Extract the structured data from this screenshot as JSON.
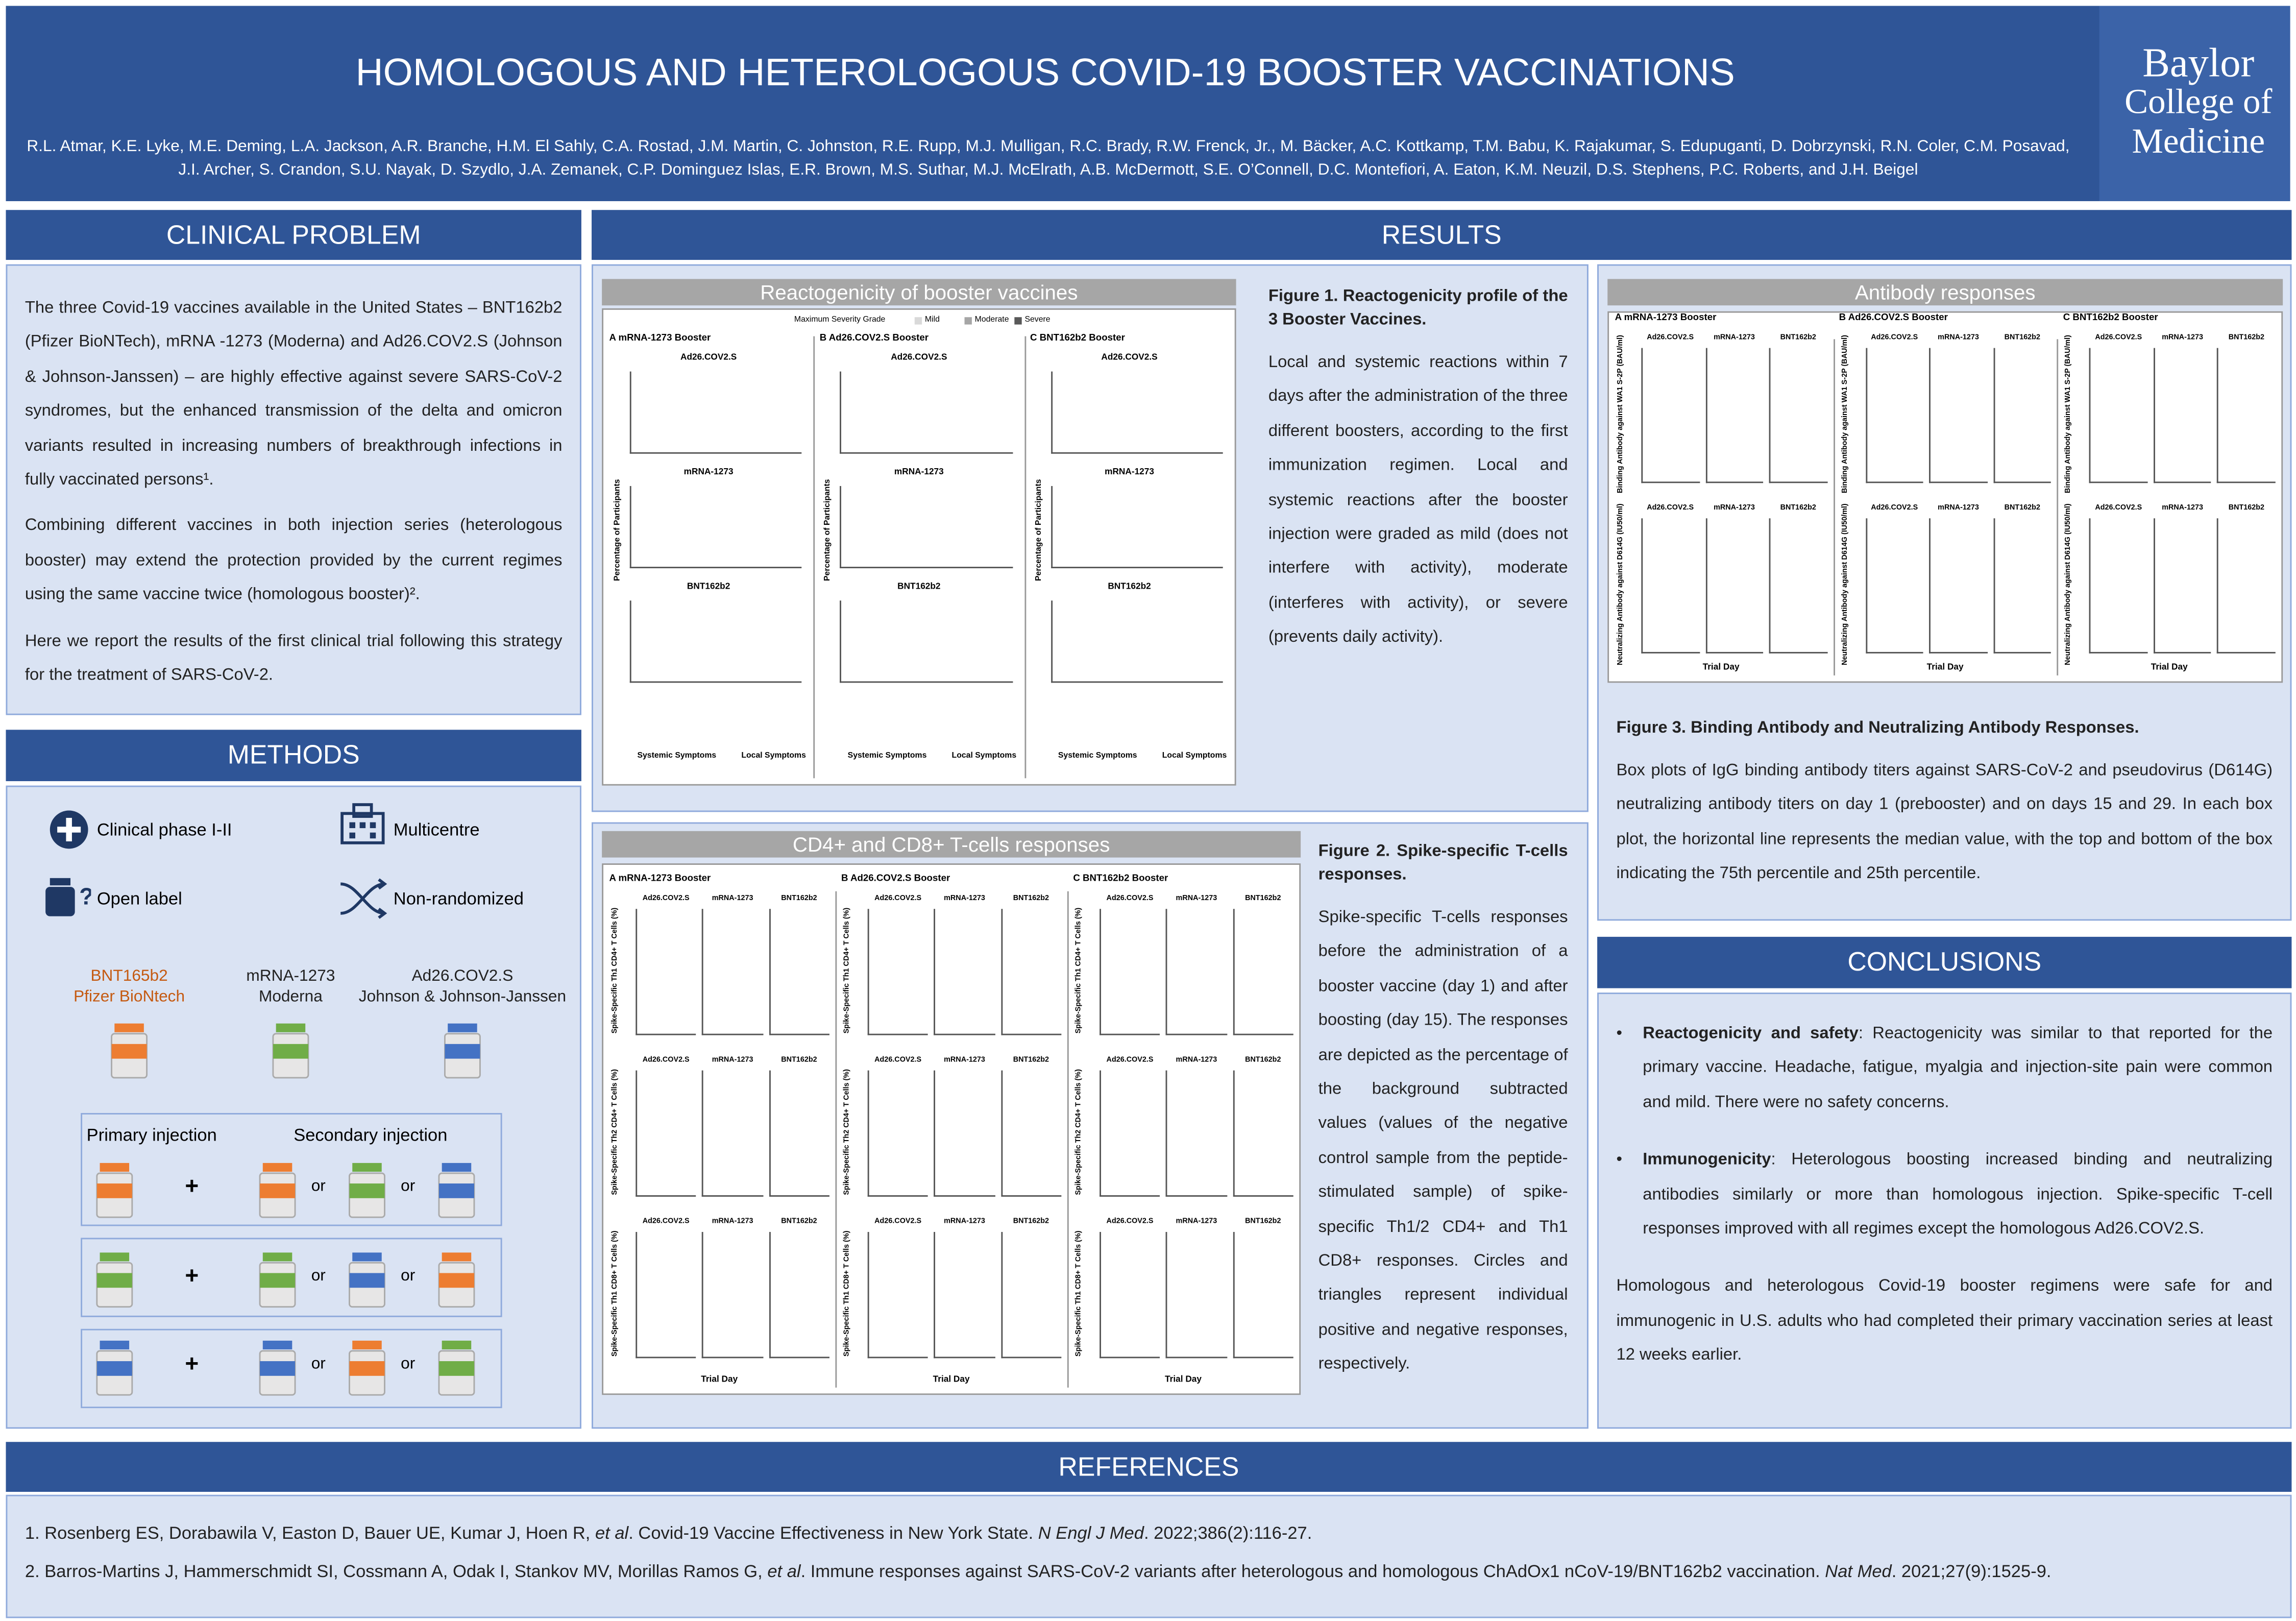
{
  "header": {
    "title": "HOMOLOGOUS AND HETEROLOGOUS COVID-19 BOOSTER VACCINATIONS",
    "authors": "R.L. Atmar, K.E. Lyke, M.E. Deming, L.A. Jackson, A.R. Branche, H.M. El Sahly, C.A. Rostad, J.M. Martin, C. Johnston, R.E. Rupp, M.J. Mulligan, R.C. Brady, R.W. Frenck, Jr., M. Bäcker, A.C. Kottkamp, T.M. Babu, K. Rajakumar, S. Edupuganti, D. Dobrzynski, R.N. Coler, C.M. Posavad, J.I. Archer, S. Crandon, S.U. Nayak, D. Szydlo, J.A. Zemanek, C.P. Dominguez Islas, E.R. Brown, M.S. Suthar, M.J. McElrath, A.B. McDermott, S.E. O’Connell, D.C. Montefiori, A. Eaton, K.M. Neuzil, D.S. Stephens, P.C. Roberts, and J.H. Beigel",
    "logo": [
      "Baylor",
      "College of",
      "Medicine"
    ]
  },
  "clinical_problem": {
    "heading": "CLINICAL PROBLEM",
    "paragraphs": [
      "The three Covid-19 vaccines available in the United States – BNT162b2 (Pfizer BioNTech), mRNA -1273 (Moderna) and Ad26.COV2.S (Johnson & Johnson-Janssen) – are highly effective against severe SARS-CoV-2 syndromes, but the enhanced transmission of the delta and omicron variants resulted in increasing numbers of breakthrough infections in fully vaccinated persons¹.",
      "Combining different vaccines in both injection series (heterologous booster) may extend the protection provided by the current regimes using the same vaccine twice (homologous booster)².",
      "Here we report the results of the first clinical trial following this strategy for the treatment of SARS-CoV-2."
    ]
  },
  "methods": {
    "heading": "METHODS",
    "features": [
      "Clinical phase I-II",
      "Multicentre",
      "Open label",
      "Non-randomized"
    ],
    "vaccines": [
      {
        "name": "BNT165b2",
        "maker": "Pfizer BioNtech",
        "color": "#ed7d31"
      },
      {
        "name": "mRNA-1273",
        "maker": "Moderna",
        "color": "#70ad47"
      },
      {
        "name": "Ad26.COV2.S",
        "maker": "Johnson & Johnson-Janssen",
        "color": "#4472c4"
      }
    ],
    "primary_label": "Primary injection",
    "secondary_label": "Secondary injection",
    "plus": "+",
    "or": "or"
  },
  "results": {
    "heading": "RESULTS",
    "figure1": {
      "title": "Reactogenicity of booster vaccines",
      "legend_title": "Maximum Severity Grade",
      "legend": [
        "Mild",
        "Moderate",
        "Severe"
      ],
      "panels": [
        "A  mRNA-1273 Booster",
        "B  Ad26.COV2.S Booster",
        "C  BNT162b2 Booster"
      ],
      "subplots": [
        "Ad26.COV2.S",
        "mRNA-1273",
        "BNT162b2"
      ],
      "y_label": "Percentage of Participants",
      "groups": [
        "Systemic Symptoms",
        "Local Symptoms"
      ],
      "caption_title": "Figure 1. Reactogenicity profile of the 3 Booster Vaccines.",
      "caption": "Local and systemic reactions within 7 days after the administration of the three different boosters, according to the first immunization regimen. Local and systemic reactions after the booster injection were graded as mild (does not interfere with activity), moderate (interferes with activity), or severe (prevents daily activity)."
    },
    "figure2": {
      "title": "CD4+ and CD8+ T-cells responses",
      "panels": [
        "A  mRNA-1273 Booster",
        "B  Ad26.COV2.S Booster",
        "C  BNT162b2 Booster"
      ],
      "subplots": [
        "Ad26.COV2.S",
        "mRNA-1273",
        "BNT162b2"
      ],
      "rows": [
        "Spike-Specific Th1 CD4+ T Cells (%)",
        "Spike-Specific Th2 CD4+ T Cells (%)",
        "Spike-Specific Th1 CD8+ T Cells (%)"
      ],
      "x_label": "Trial Day",
      "caption_title": "Figure 2. Spike-specific T-cells responses.",
      "caption": "Spike-specific T-cells responses before the administration of a booster vaccine (day 1) and after boosting (day 15). The responses are depicted as the percentage of the background subtracted values (values of the negative control sample from the peptide-stimulated sample) of spike-specific Th1/2 CD4+ and Th1 CD8+ responses. Circles and triangles represent individual positive and negative responses, respectively."
    },
    "figure3": {
      "title": "Antibody responses",
      "panels": [
        "A  mRNA-1273 Booster",
        "B  Ad26.COV2.S Booster",
        "C  BNT162b2 Booster"
      ],
      "subplots": [
        "Ad26.COV2.S",
        "mRNA-1273",
        "BNT162b2"
      ],
      "rows": [
        "Binding Antibody against WA1 S-2P (BAU/ml)",
        "Neutralizing Antibody against D614G (IU50/ml)"
      ],
      "x_label": "Trial Day",
      "caption_title": "Figure 3. Binding Antibody and Neutralizing Antibody Responses.",
      "caption": "Box plots of IgG binding antibody titers against SARS-CoV-2 and pseudovirus (D614G) neutralizing antibody titers on day 1 (prebooster) and on days 15 and 29. In each box plot, the horizontal line represents the median value, with the top and bottom of the box indicating the 75th percentile and 25th percentile."
    }
  },
  "conclusions": {
    "heading": "CONCLUSIONS",
    "bullets": [
      {
        "label": "Reactogenicity and safety",
        "text": ": Reactogenicity was similar to that reported for the primary vaccine. Headache, fatigue, myalgia and injection-site pain were common and mild. There were no safety concerns."
      },
      {
        "label": "Immunogenicity",
        "text": ": Heterologous boosting increased binding and neutralizing antibodies similarly or more than homologous injection. Spike-specific T-cell responses improved with all regimes except the homologous Ad26.COV2.S."
      }
    ],
    "summary": "Homologous and heterologous Covid-19 booster regimens were safe for and immunogenic in U.S. adults who had completed their primary vaccination series at least 12 weeks earlier."
  },
  "references": {
    "heading": "REFERENCES",
    "items": [
      [
        {
          "text": "1.   Rosenberg ES, Dorabawila V, Easton D, Bauer UE, Kumar J, Hoen R, "
        },
        {
          "text": "et al",
          "italic": true
        },
        {
          "text": ". Covid-19 Vaccine Effectiveness in New York State. "
        },
        {
          "text": "N Engl J Med",
          "italic": true
        },
        {
          "text": ". 2022;386(2):116-27."
        }
      ],
      [
        {
          "text": "2.   Barros-Martins J, Hammerschmidt SI, Cossmann A, Odak I, Stankov MV, Morillas Ramos G, "
        },
        {
          "text": "et al",
          "italic": true
        },
        {
          "text": ". Immune responses against SARS-CoV-2 variants after heterologous and homologous ChAdOx1 nCoV-19/BNT162b2 vaccination. "
        },
        {
          "text": "Nat Med",
          "italic": true
        },
        {
          "text": ". 2021;27(9):1525-9."
        }
      ]
    ]
  }
}
